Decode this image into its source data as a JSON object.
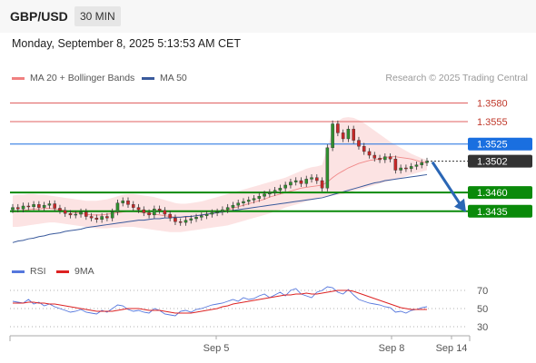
{
  "header": {
    "pair": "GBP/USD",
    "timeframe": "30 MIN",
    "timestamp": "Monday, September 8, 2025 5:13:53 AM CET"
  },
  "legend": {
    "ma": "MA 20 + Bollinger Bands",
    "ma50": "MA 50",
    "credit": "Research © 2025 Trading Central"
  },
  "rsi_legend": {
    "rsi": "RSI",
    "ma": "9MA"
  },
  "colors": {
    "resistance": "#e06060",
    "pivot": "#1a6fe0",
    "support": "#0a8a0a",
    "last": "#333333",
    "candle_up": "#2f8f2f",
    "candle_down": "#c62828",
    "band_fill": "#fbdcdc",
    "ma50": "#3a5a9c",
    "arrow": "#2a66b5",
    "rsi_line": "#5577dd",
    "rsi_ma": "#dd2222"
  },
  "chart_data": {
    "type": "candlestick",
    "y_range": [
      1.338,
      1.36
    ],
    "levels": [
      {
        "value": 1.358,
        "label": "1.3580",
        "kind": "resistance"
      },
      {
        "value": 1.3555,
        "label": "1.3555",
        "kind": "resistance"
      },
      {
        "value": 1.3525,
        "label": "1.3525",
        "kind": "pivot"
      },
      {
        "value": 1.3502,
        "label": "1.3502",
        "kind": "last"
      },
      {
        "value": 1.346,
        "label": "1.3460",
        "kind": "support"
      },
      {
        "value": 1.3435,
        "label": "1.3435",
        "kind": "support"
      }
    ],
    "x_labels": [
      "Sep 5",
      "Sep 8",
      "Sep 14"
    ],
    "price": [
      1.344,
      1.3438,
      1.3442,
      1.3441,
      1.3444,
      1.344,
      1.3443,
      1.3445,
      1.3439,
      1.3436,
      1.3432,
      1.343,
      1.3431,
      1.3434,
      1.3428,
      1.3426,
      1.3424,
      1.3428,
      1.3426,
      1.3434,
      1.3446,
      1.3449,
      1.3444,
      1.344,
      1.3437,
      1.3433,
      1.343,
      1.3438,
      1.3436,
      1.3431,
      1.3426,
      1.3421,
      1.342,
      1.3423,
      1.3425,
      1.3427,
      1.3429,
      1.3431,
      1.3433,
      1.3434,
      1.3437,
      1.344,
      1.3443,
      1.3446,
      1.3448,
      1.345,
      1.3452,
      1.3455,
      1.3458,
      1.346,
      1.3463,
      1.3466,
      1.347,
      1.3474,
      1.3476,
      1.3472,
      1.3478,
      1.348,
      1.3476,
      1.3466,
      1.352,
      1.3552,
      1.354,
      1.3532,
      1.3545,
      1.353,
      1.3522,
      1.3515,
      1.351,
      1.3506,
      1.3504,
      1.3508,
      1.3505,
      1.349,
      1.3493,
      1.3492,
      1.3495,
      1.3497,
      1.35,
      1.3502
    ],
    "ma20": [
      1.3434,
      1.3435,
      1.3436,
      1.3437,
      1.3438,
      1.3438,
      1.3439,
      1.3439,
      1.3438,
      1.3437,
      1.3436,
      1.3434,
      1.3433,
      1.3432,
      1.3431,
      1.343,
      1.343,
      1.343,
      1.3431,
      1.3432,
      1.3433,
      1.3434,
      1.3435,
      1.3435,
      1.3434,
      1.3433,
      1.3432,
      1.3431,
      1.343,
      1.3429,
      1.3428,
      1.3427,
      1.3427,
      1.3427,
      1.3428,
      1.3429,
      1.343,
      1.3431,
      1.3432,
      1.3434,
      1.3435,
      1.3437,
      1.3439,
      1.3441,
      1.3443,
      1.3445,
      1.3447,
      1.3449,
      1.3451,
      1.3454,
      1.3456,
      1.3458,
      1.346,
      1.3462,
      1.3464,
      1.3466,
      1.3467,
      1.3468,
      1.3469,
      1.347,
      1.3474,
      1.348,
      1.3485,
      1.3489,
      1.3493,
      1.3496,
      1.3499,
      1.3501,
      1.3503,
      1.3504,
      1.3505,
      1.3507,
      1.3508,
      1.3508,
      1.3507,
      1.3506,
      1.3505,
      1.3503,
      1.3501,
      1.35
    ],
    "bb_upper": [
      1.3456,
      1.3457,
      1.3457,
      1.3458,
      1.3458,
      1.3457,
      1.3457,
      1.3456,
      1.3455,
      1.3454,
      1.3453,
      1.3452,
      1.3451,
      1.345,
      1.3449,
      1.3449,
      1.3449,
      1.345,
      1.3451,
      1.3453,
      1.3455,
      1.3457,
      1.3458,
      1.3458,
      1.3457,
      1.3456,
      1.3455,
      1.3454,
      1.3452,
      1.345,
      1.3448,
      1.3446,
      1.3445,
      1.3445,
      1.3446,
      1.3447,
      1.3448,
      1.345,
      1.3452,
      1.3454,
      1.3456,
      1.3458,
      1.346,
      1.3462,
      1.3464,
      1.3466,
      1.3468,
      1.347,
      1.3472,
      1.3474,
      1.3476,
      1.3478,
      1.348,
      1.3483,
      1.3486,
      1.3489,
      1.3492,
      1.3494,
      1.3495,
      1.3497,
      1.352,
      1.3545,
      1.3556,
      1.356,
      1.3561,
      1.356,
      1.3557,
      1.3553,
      1.3548,
      1.3543,
      1.3538,
      1.3533,
      1.3528,
      1.3524,
      1.352,
      1.3516,
      1.3512,
      1.3509,
      1.3506,
      1.3504
    ],
    "bb_lower": [
      1.3414,
      1.3414,
      1.3415,
      1.3416,
      1.3417,
      1.3418,
      1.3419,
      1.342,
      1.342,
      1.3419,
      1.3418,
      1.3417,
      1.3416,
      1.3415,
      1.3414,
      1.3413,
      1.3412,
      1.3412,
      1.3412,
      1.3413,
      1.3413,
      1.3414,
      1.3414,
      1.3414,
      1.3413,
      1.3412,
      1.3411,
      1.341,
      1.3409,
      1.3408,
      1.3407,
      1.3407,
      1.3407,
      1.3408,
      1.3409,
      1.341,
      1.3411,
      1.3412,
      1.3413,
      1.3414,
      1.3415,
      1.3416,
      1.3418,
      1.342,
      1.3422,
      1.3424,
      1.3426,
      1.3428,
      1.343,
      1.3432,
      1.3435,
      1.3437,
      1.344,
      1.3442,
      1.3444,
      1.3446,
      1.3448,
      1.345,
      1.3452,
      1.3454,
      1.3455,
      1.3456,
      1.3457,
      1.3458,
      1.346,
      1.3462,
      1.3464,
      1.3466,
      1.3468,
      1.347,
      1.3472,
      1.3474,
      1.3476,
      1.3478,
      1.348,
      1.3482,
      1.3484,
      1.3486,
      1.3488,
      1.349
    ],
    "ma50": [
      1.3393,
      1.3395,
      1.3396,
      1.3398,
      1.3399,
      1.3401,
      1.3402,
      1.3404,
      1.3405,
      1.3406,
      1.3408,
      1.3409,
      1.341,
      1.3411,
      1.3413,
      1.3414,
      1.3415,
      1.3416,
      1.3417,
      1.3418,
      1.3419,
      1.342,
      1.3421,
      1.3422,
      1.3423,
      1.3423,
      1.3424,
      1.3425,
      1.3425,
      1.3426,
      1.3426,
      1.3427,
      1.3427,
      1.3428,
      1.3428,
      1.3429,
      1.343,
      1.3431,
      1.3432,
      1.3433,
      1.3434,
      1.3435,
      1.3436,
      1.3437,
      1.3438,
      1.3439,
      1.344,
      1.3441,
      1.3442,
      1.3443,
      1.3444,
      1.3445,
      1.3446,
      1.3447,
      1.3448,
      1.3449,
      1.345,
      1.3451,
      1.3452,
      1.3453,
      1.3455,
      1.3457,
      1.3459,
      1.3461,
      1.3463,
      1.3465,
      1.3467,
      1.3469,
      1.3471,
      1.3473,
      1.3474,
      1.3476,
      1.3477,
      1.3478,
      1.3479,
      1.348,
      1.3481,
      1.3482,
      1.3483,
      1.3484
    ],
    "rsi": {
      "y_range": [
        20,
        80
      ],
      "levels": [
        70,
        50,
        30
      ],
      "values": [
        58,
        57,
        56,
        60,
        55,
        57,
        53,
        55,
        52,
        50,
        48,
        46,
        47,
        49,
        46,
        45,
        44,
        48,
        46,
        50,
        54,
        53,
        49,
        47,
        48,
        46,
        45,
        50,
        48,
        44,
        43,
        42,
        47,
        48,
        46,
        49,
        50,
        52,
        54,
        55,
        56,
        58,
        60,
        58,
        62,
        60,
        61,
        64,
        66,
        62,
        65,
        68,
        64,
        70,
        72,
        66,
        64,
        62,
        68,
        70,
        74,
        73,
        68,
        66,
        71,
        65,
        60,
        58,
        56,
        55,
        54,
        52,
        51,
        46,
        47,
        45,
        48,
        49,
        51,
        52
      ],
      "ma9": [
        56,
        56,
        56,
        57,
        57,
        56,
        56,
        55,
        55,
        54,
        53,
        52,
        51,
        50,
        49,
        48,
        47,
        47,
        47,
        47,
        48,
        49,
        50,
        50,
        50,
        49,
        48,
        48,
        48,
        47,
        46,
        45,
        45,
        45,
        45,
        46,
        47,
        48,
        49,
        50,
        52,
        53,
        55,
        56,
        57,
        58,
        59,
        60,
        61,
        62,
        63,
        64,
        65,
        65,
        66,
        66,
        67,
        66,
        66,
        67,
        68,
        69,
        70,
        70,
        70,
        69,
        67,
        65,
        63,
        61,
        59,
        57,
        55,
        53,
        51,
        50,
        49,
        49,
        49,
        49
      ]
    }
  }
}
